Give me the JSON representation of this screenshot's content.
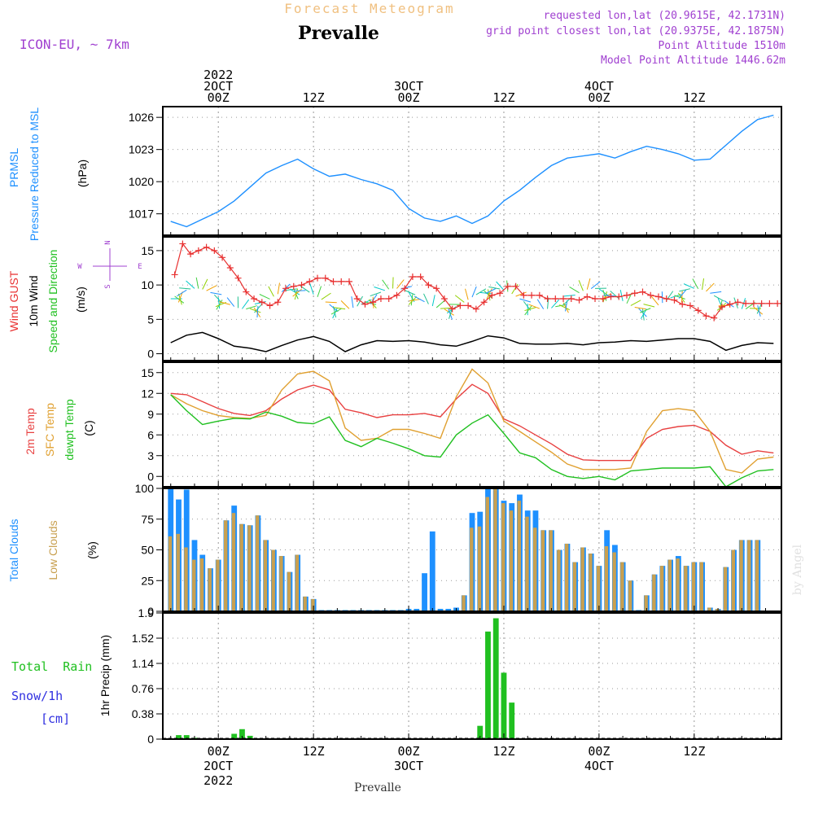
{
  "header": {
    "subtitle": "Forecast Meteogram",
    "location": "Prevalle",
    "model": "ICON-EU, ~ 7km",
    "requested": "requested lon,lat (20.9615E, 42.1731N)",
    "grid_point": "grid point closest lon,lat (20.9375E, 42.1875N)",
    "point_altitude": "Point Altitude 1510m",
    "model_altitude": "Model Point Altitude 1446.62m",
    "watermark": "by Angel",
    "footer_location": "Prevalle"
  },
  "colors": {
    "pressure": "#1e90ff",
    "gust": "#e83030",
    "wind": "#000000",
    "temp2m": "#e84040",
    "sfc": "#e0a030",
    "dewpt": "#20c020",
    "total_clouds": "#1e90ff",
    "low_clouds": "#c8a050",
    "rain": "#20c020",
    "snow": "#3030e0",
    "purple": "#a040d0",
    "header_orange": "#f0c080"
  },
  "time_axis": {
    "top_labels": [
      {
        "h": 0,
        "lines": [
          "2022",
          "2OCT",
          "00Z"
        ]
      },
      {
        "h": 12,
        "lines": [
          "12Z"
        ]
      },
      {
        "h": 24,
        "lines": [
          "3OCT",
          "00Z"
        ]
      },
      {
        "h": 36,
        "lines": [
          "12Z"
        ]
      },
      {
        "h": 48,
        "lines": [
          "4OCT",
          "00Z"
        ]
      },
      {
        "h": 60,
        "lines": [
          "12Z"
        ]
      }
    ],
    "bottom_labels": [
      {
        "h": 0,
        "lines": [
          "00Z",
          "2OCT",
          "2022"
        ]
      },
      {
        "h": 12,
        "lines": [
          "12Z"
        ]
      },
      {
        "h": 24,
        "lines": [
          "00Z",
          "3OCT"
        ]
      },
      {
        "h": 36,
        "lines": [
          "12Z"
        ]
      },
      {
        "h": 48,
        "lines": [
          "00Z",
          "4OCT"
        ]
      },
      {
        "h": 60,
        "lines": [
          "12Z"
        ]
      }
    ]
  },
  "chart_data": [
    {
      "type": "line",
      "title": "PRMSL Pressure Reduced to MSL",
      "title_lines": [
        "PRMSL",
        "Pressure Reduced to MSL"
      ],
      "ylabel": "(hPa)",
      "ylim": [
        1015,
        1027
      ],
      "yticks": [
        1017,
        1020,
        1023,
        1026
      ],
      "series": [
        {
          "name": "Pressure",
          "x": [
            -6,
            -4,
            -2,
            0,
            2,
            4,
            6,
            8,
            10,
            12,
            14,
            16,
            18,
            20,
            22,
            24,
            26,
            28,
            30,
            32,
            34,
            36,
            38,
            40,
            42,
            44,
            46,
            48,
            50,
            52,
            54,
            56,
            58,
            60,
            62,
            64,
            66,
            68,
            70
          ],
          "values": [
            1016.3,
            1015.8,
            1016.5,
            1017.2,
            1018.2,
            1019.5,
            1020.8,
            1021.5,
            1022.1,
            1021.2,
            1020.5,
            1020.7,
            1020.2,
            1019.8,
            1019.2,
            1017.5,
            1016.6,
            1016.3,
            1016.8,
            1016.1,
            1016.8,
            1018.2,
            1019.2,
            1020.4,
            1021.5,
            1022.2,
            1022.4,
            1022.6,
            1022.2,
            1022.8,
            1023.3,
            1023.0,
            1022.6,
            1022.0,
            1022.1,
            1023.4,
            1024.7,
            1025.8,
            1026.2
          ]
        }
      ]
    },
    {
      "type": "line",
      "title": "Wind GUST 10m Wind Speed and Direction",
      "title_lines": [
        "Wind GUST",
        "10m Wind",
        "Speed and Direction"
      ],
      "ylabel": "(m/s)",
      "compass": {
        "n": "N",
        "e": "E",
        "s": "S",
        "w": "W"
      },
      "ylim": [
        -1,
        17
      ],
      "yticks": [
        0,
        5,
        10,
        15
      ],
      "series": [
        {
          "name": "Wind GUST",
          "x": [
            -5.5,
            -4.5,
            -3.5,
            -2.5,
            -1.5,
            -0.5,
            0.5,
            1.5,
            2.5,
            3.5,
            4.5,
            5.5,
            6.5,
            7.5,
            8.5,
            9.5,
            10.5,
            11.5,
            12.5,
            13.5,
            14.5,
            15.5,
            16.5,
            17.5,
            18.5,
            19.5,
            20.5,
            21.5,
            22.5,
            23.5,
            24.5,
            25.5,
            26.5,
            27.5,
            28.5,
            29.5,
            30.5,
            31.5,
            32.5,
            33.5,
            34.5,
            35.5,
            36.5,
            37.5,
            38.5,
            39.5,
            40.5,
            41.5,
            42.5,
            43.5,
            44.5,
            45.5,
            46.5,
            47.5,
            48.5,
            49.5,
            50.5,
            51.5,
            52.5,
            53.5,
            54.5,
            55.5,
            56.5,
            57.5,
            58.5,
            59.5,
            60.5,
            61.5,
            62.5,
            63.5,
            64.5,
            65.5,
            66.5,
            67.5,
            68.5,
            69.5,
            70.5
          ],
          "values": [
            11.5,
            16,
            14.5,
            15,
            15.5,
            15,
            14,
            12.5,
            11,
            9,
            8,
            7.5,
            7,
            7.5,
            9.5,
            9.8,
            10,
            10.5,
            11,
            11,
            10.5,
            10.5,
            10.5,
            8,
            7.2,
            7.5,
            8,
            8,
            8.5,
            9.5,
            11.2,
            11.2,
            10,
            9.5,
            8,
            6.5,
            7,
            7,
            6.5,
            7.5,
            8.5,
            8.8,
            9.8,
            9.8,
            8.5,
            8.5,
            8.5,
            8,
            8,
            8,
            8,
            7.8,
            8.3,
            8,
            8,
            8.3,
            8.3,
            8.5,
            8.8,
            9,
            8.5,
            8.3,
            8,
            7.8,
            7.2,
            7,
            6.3,
            5.5,
            5.2,
            6.8,
            7.2,
            7.5,
            7.3,
            7.3,
            7.3,
            7.3,
            7.3
          ]
        },
        {
          "name": "10m Wind",
          "x": [
            -6,
            -4,
            -2,
            0,
            2,
            4,
            6,
            8,
            10,
            12,
            14,
            16,
            18,
            20,
            22,
            24,
            26,
            28,
            30,
            32,
            34,
            36,
            38,
            40,
            42,
            44,
            46,
            48,
            50,
            52,
            54,
            56,
            58,
            60,
            62,
            64,
            66,
            68,
            70
          ],
          "values": [
            1.6,
            2.7,
            3.1,
            2.2,
            1.1,
            0.8,
            0.3,
            1.2,
            2.0,
            2.5,
            1.8,
            0.3,
            1.3,
            1.9,
            1.8,
            1.9,
            1.7,
            1.3,
            1.1,
            1.8,
            2.6,
            2.3,
            1.5,
            1.4,
            1.4,
            1.5,
            1.3,
            1.6,
            1.7,
            1.9,
            1.8,
            2.0,
            2.2,
            2.2,
            1.8,
            0.5,
            1.2,
            1.6,
            1.5
          ]
        }
      ]
    },
    {
      "type": "line",
      "title": "2m Temp SFC Temp dewpt Temp",
      "title_lines": [
        "2m Temp",
        "SFC Temp",
        "dewpt Temp"
      ],
      "ylabel": "(C)",
      "ylim": [
        -1.5,
        16.5
      ],
      "yticks": [
        0,
        3,
        6,
        9,
        12,
        15
      ],
      "series": [
        {
          "name": "2m Temp",
          "x": [
            -6,
            -4,
            -2,
            0,
            2,
            4,
            6,
            8,
            10,
            12,
            14,
            16,
            18,
            20,
            22,
            24,
            26,
            28,
            30,
            32,
            34,
            36,
            38,
            40,
            42,
            44,
            46,
            48,
            50,
            52,
            54,
            56,
            58,
            60,
            62,
            64,
            66,
            68,
            70
          ],
          "values": [
            12,
            11.8,
            10.8,
            9.8,
            9.1,
            8.8,
            9.5,
            11.2,
            12.5,
            13.2,
            12.5,
            9.7,
            9.2,
            8.5,
            8.9,
            8.9,
            9.1,
            8.6,
            11.2,
            13.3,
            12.0,
            8.3,
            7.3,
            6.0,
            4.7,
            3.2,
            2.4,
            2.3,
            2.3,
            2.3,
            5.5,
            6.8,
            7.2,
            7.4,
            6.5,
            4.5,
            3.2,
            3.7,
            3.4
          ]
        },
        {
          "name": "SFC Temp",
          "x": [
            -6,
            -4,
            -2,
            0,
            2,
            4,
            6,
            8,
            10,
            12,
            14,
            16,
            18,
            20,
            22,
            24,
            26,
            28,
            30,
            32,
            34,
            36,
            38,
            40,
            42,
            44,
            46,
            48,
            50,
            52,
            54,
            56,
            58,
            60,
            62,
            64,
            66,
            68,
            70
          ],
          "values": [
            11.8,
            10.5,
            9.5,
            8.8,
            8.5,
            8.4,
            8.8,
            12.5,
            14.8,
            15.2,
            13.8,
            7.0,
            5.2,
            5.5,
            6.8,
            6.8,
            6.2,
            5.5,
            11.5,
            15.5,
            13.5,
            8.0,
            6.5,
            5.0,
            3.5,
            1.8,
            1.0,
            1.0,
            1.0,
            1.2,
            6.5,
            9.5,
            9.8,
            9.5,
            6.5,
            1.0,
            0.5,
            2.5,
            2.8
          ]
        },
        {
          "name": "dewpt Temp",
          "x": [
            -6,
            -4,
            -2,
            0,
            2,
            4,
            6,
            8,
            10,
            12,
            14,
            16,
            18,
            20,
            22,
            24,
            26,
            28,
            30,
            32,
            34,
            36,
            38,
            40,
            42,
            44,
            46,
            48,
            50,
            52,
            54,
            56,
            58,
            60,
            62,
            64,
            66,
            68,
            70
          ],
          "values": [
            11.8,
            9.5,
            7.5,
            8.0,
            8.4,
            8.3,
            9.3,
            8.7,
            7.8,
            7.6,
            8.6,
            5.2,
            4.3,
            5.5,
            4.8,
            4.0,
            3.0,
            2.8,
            6.0,
            7.7,
            8.9,
            6.2,
            3.4,
            2.7,
            1.0,
            0.0,
            -0.3,
            0.0,
            -0.5,
            0.8,
            1.0,
            1.2,
            1.2,
            1.2,
            1.4,
            -1.5,
            -0.2,
            0.8,
            1.0
          ]
        }
      ]
    },
    {
      "type": "bar",
      "title": "Total Clouds Low Clouds",
      "title_lines": [
        "Total Clouds",
        "Low Clouds"
      ],
      "ylabel": "(%)",
      "ylim": [
        0,
        100
      ],
      "yticks": [
        0,
        25,
        50,
        75,
        100
      ],
      "x_start": -6,
      "x_step": 1,
      "series": [
        {
          "name": "Total Clouds",
          "values": [
            100,
            91,
            99,
            58,
            46,
            35,
            42,
            74,
            86,
            71,
            70,
            78,
            58,
            50,
            45,
            32,
            46,
            12,
            10,
            1,
            1,
            1,
            1,
            1,
            1,
            1,
            1,
            1,
            1,
            1,
            2,
            2,
            31,
            65,
            2,
            2,
            3,
            13,
            80,
            81,
            100,
            100,
            90,
            88,
            95,
            82,
            82,
            66,
            66,
            50,
            55,
            40,
            52,
            47,
            37,
            66,
            54,
            40,
            25,
            1,
            13,
            30,
            37,
            42,
            45,
            37,
            40,
            40,
            3,
            2,
            36,
            50,
            58,
            58,
            58
          ]
        },
        {
          "name": "Low Clouds",
          "values": [
            61,
            63,
            52,
            42,
            43,
            35,
            42,
            74,
            80,
            71,
            70,
            78,
            58,
            50,
            45,
            32,
            46,
            12,
            10,
            0,
            0,
            0,
            0,
            0,
            0,
            0,
            0,
            0,
            0,
            0,
            0,
            0,
            0,
            0,
            0,
            0,
            0,
            13,
            68,
            69,
            93,
            100,
            88,
            82,
            90,
            77,
            68,
            66,
            66,
            50,
            55,
            40,
            52,
            47,
            37,
            53,
            48,
            40,
            25,
            0,
            13,
            30,
            37,
            42,
            43,
            37,
            40,
            40,
            3,
            2,
            36,
            50,
            58,
            58,
            58
          ]
        }
      ]
    },
    {
      "type": "bar",
      "title": "Total Rain Snow/1h",
      "legend": {
        "rain": "Total  Rain",
        "snow": "Snow/1h",
        "unit": "[cm]"
      },
      "ylabel": "1hr Precip (mm)",
      "ylim": [
        0,
        1.9
      ],
      "yticks": [
        0,
        0.38,
        0.76,
        1.14,
        1.52,
        1.9
      ],
      "ytick_labels": [
        "0",
        "0.38",
        "0.76",
        "1.14",
        "1.52",
        "1.9"
      ],
      "x_start": -6,
      "x_step": 1,
      "series": [
        {
          "name": "Total Rain",
          "values": [
            0,
            0.06,
            0.06,
            0.02,
            0,
            0,
            0,
            0,
            0.08,
            0.15,
            0.05,
            0,
            0,
            0,
            0,
            0,
            0,
            0,
            0,
            0,
            0,
            0,
            0,
            0,
            0,
            0,
            0,
            0,
            0,
            0,
            0,
            0,
            0,
            0,
            0,
            0,
            0,
            0,
            0,
            0.2,
            1.62,
            1.82,
            1.0,
            0.55,
            0,
            0,
            0,
            0,
            0,
            0,
            0,
            0,
            0,
            0,
            0,
            0,
            0,
            0,
            0,
            0,
            0,
            0,
            0,
            0,
            0,
            0,
            0,
            0,
            0,
            0,
            0,
            0,
            0,
            0,
            0,
            0,
            0
          ]
        },
        {
          "name": "Snow/1h",
          "values": []
        }
      ]
    }
  ]
}
